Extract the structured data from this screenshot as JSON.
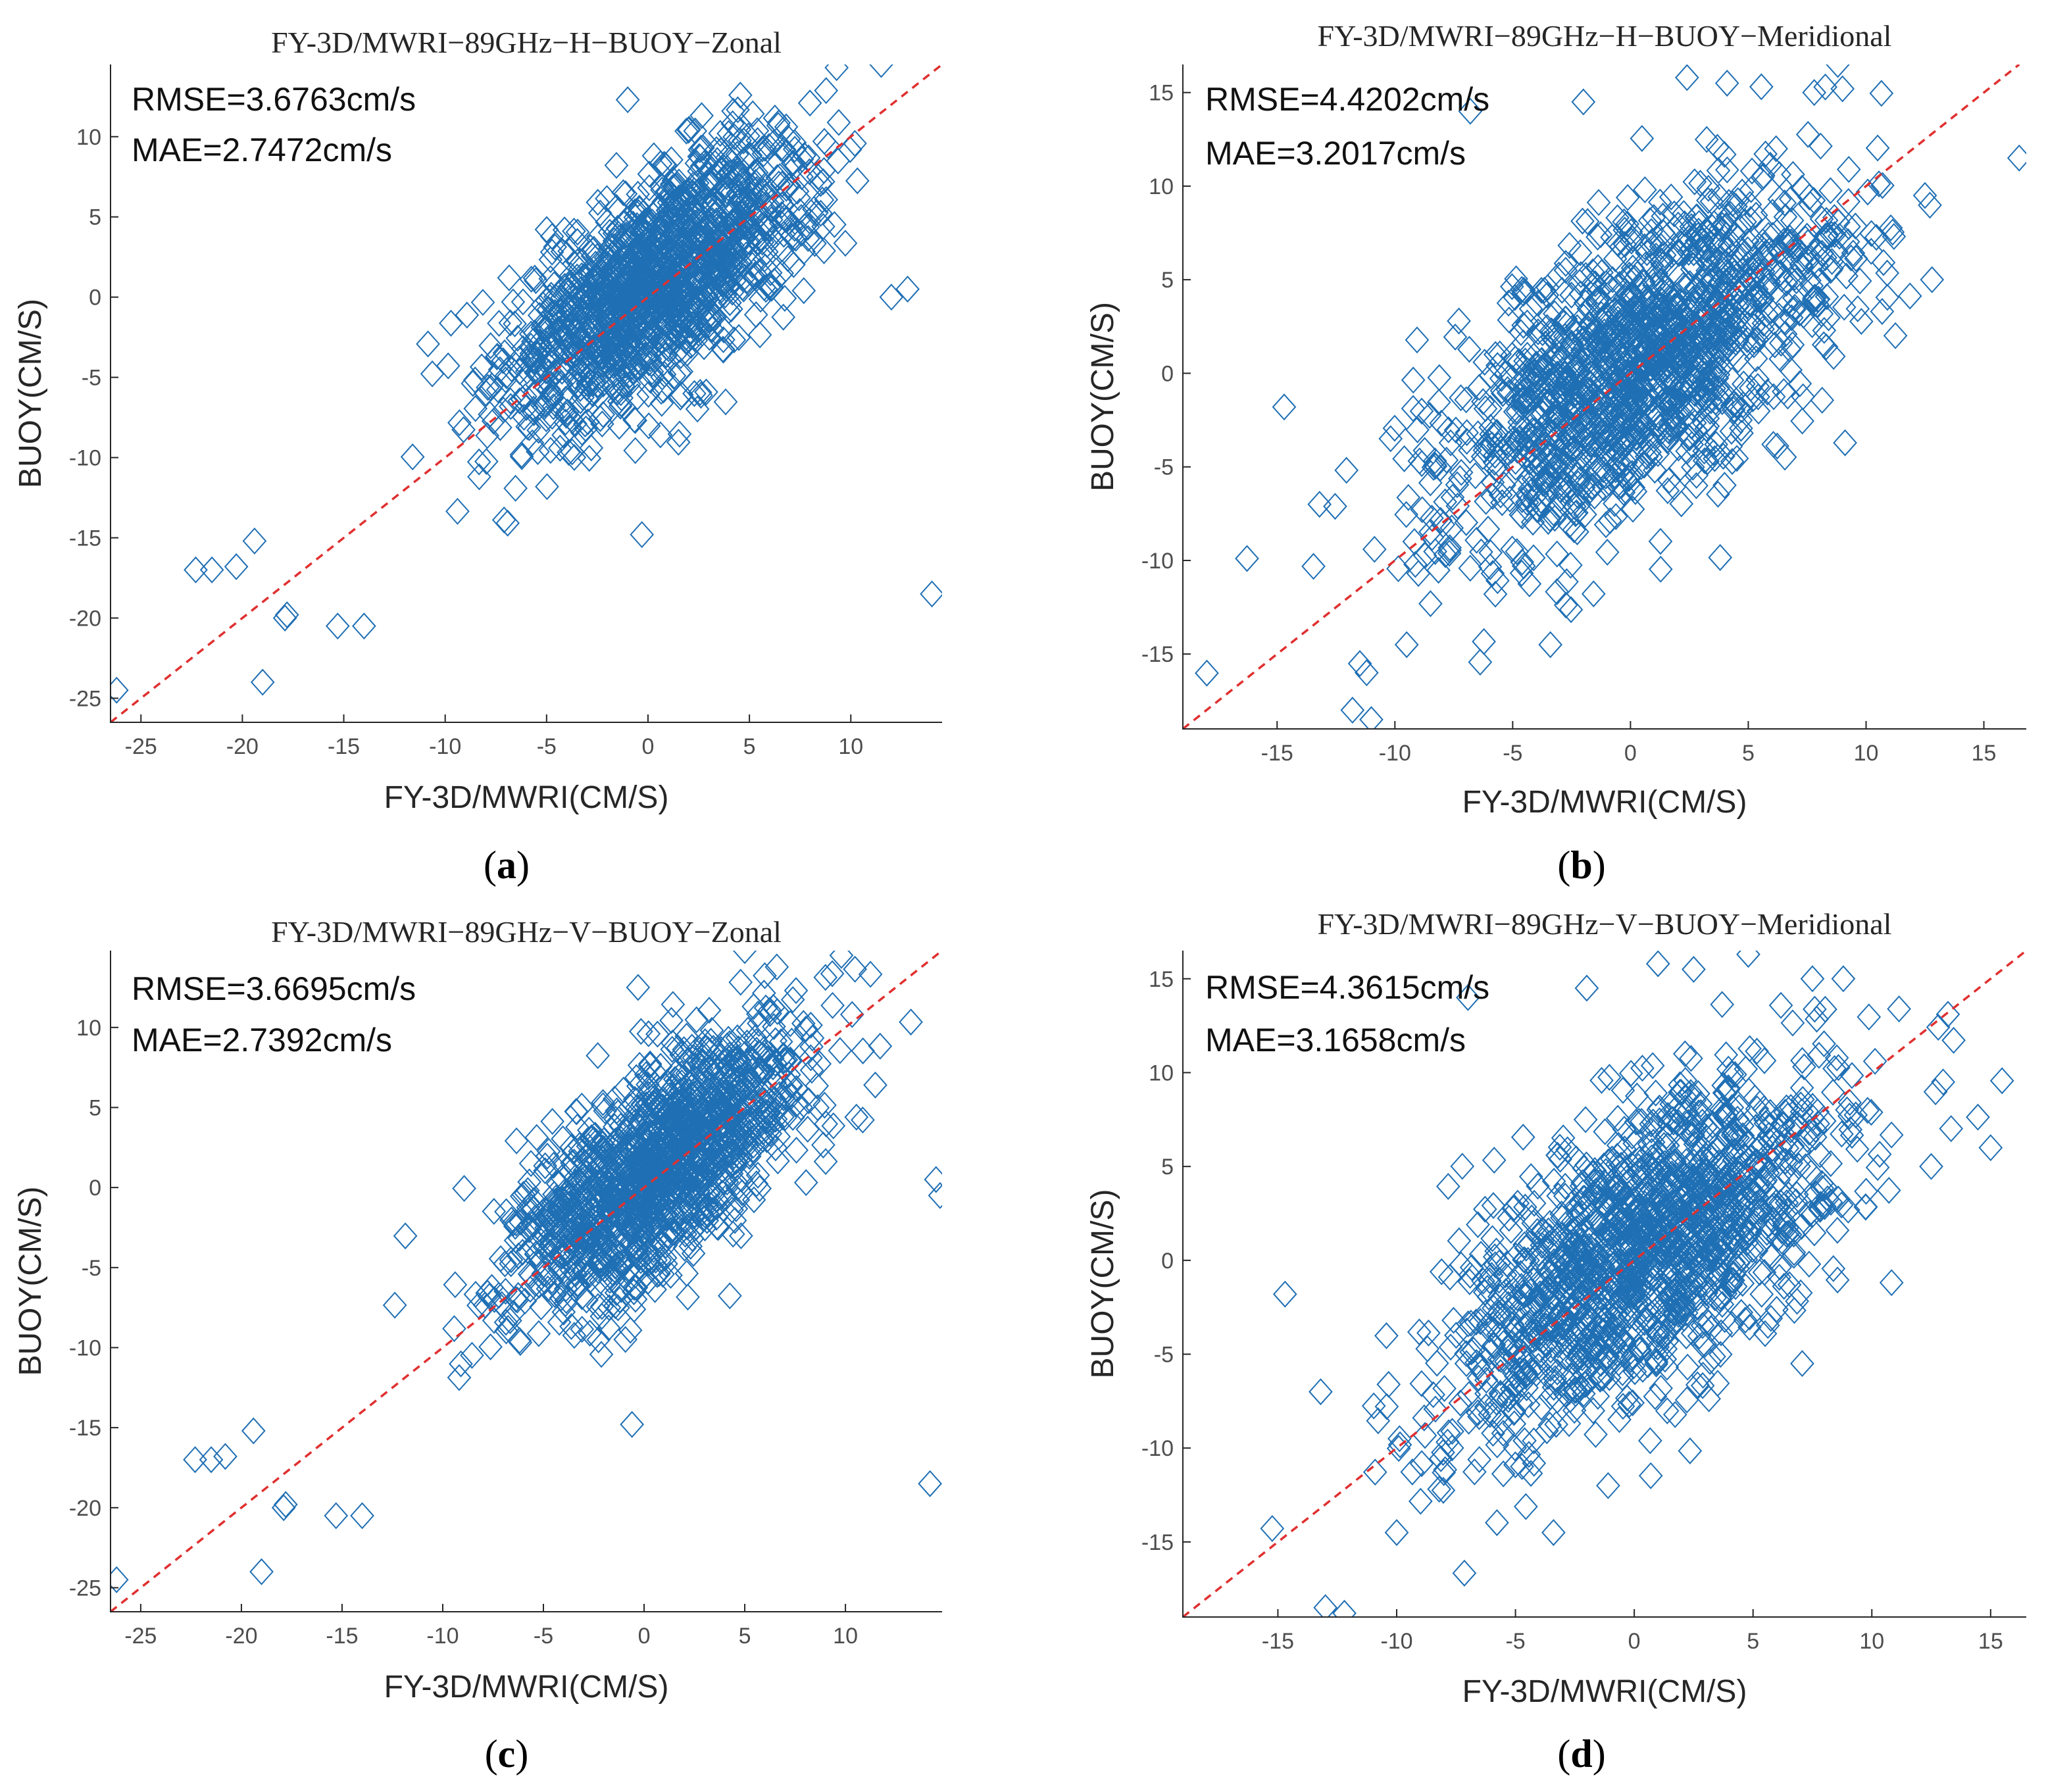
{
  "colors": {
    "marker": "#1f6fb4",
    "reference_line": "#e03030",
    "axis": "#262626"
  },
  "panels": [
    {
      "id": "a",
      "label_open": "(",
      "label_letter": "a",
      "label_close": ")",
      "title": "FY-3D/MWRI−89GHz−H−BUOY−Zonal",
      "stats": [
        "RMSE=3.6763cm/s",
        "MAE=2.7472cm/s"
      ],
      "chart_data": {
        "type": "scatter",
        "xlabel": "FY-3D/MWRI(CM/S)",
        "ylabel": "BUOY(CM/S)",
        "xlim": [
          -26.5,
          14.5
        ],
        "ylim": [
          -26.5,
          14.5
        ],
        "xticks": [
          -25,
          -20,
          -15,
          -10,
          -5,
          0,
          5,
          10
        ],
        "yticks": [
          -25,
          -20,
          -15,
          -10,
          -5,
          0,
          5,
          10
        ],
        "reference_line": "y=x",
        "marker": "diamond",
        "sample_points": 1400,
        "cluster_center": [
          0.5,
          1.0
        ],
        "sd": [
          3.8,
          4.4
        ],
        "correlation": 0.68,
        "outliers": [
          [
            -26.2,
            -24.5
          ],
          [
            -22.3,
            -17.0
          ],
          [
            -21.5,
            -17.0
          ],
          [
            -20.3,
            -16.8
          ],
          [
            -19.4,
            -15.2
          ],
          [
            -19.0,
            -24.0
          ],
          [
            -17.9,
            -20.0
          ],
          [
            -17.8,
            -19.8
          ],
          [
            -15.3,
            -20.5
          ],
          [
            -14.0,
            -20.5
          ],
          [
            14.0,
            -18.5
          ],
          [
            -0.3,
            -14.8
          ],
          [
            11.5,
            14.5
          ],
          [
            9.3,
            14.3
          ],
          [
            -1.0,
            12.3
          ],
          [
            12.8,
            0.5
          ],
          [
            12.0,
            0.0
          ]
        ]
      }
    },
    {
      "id": "b",
      "label_open": "(",
      "label_letter": "b",
      "label_close": ")",
      "title": "FY-3D/MWRI−89GHz−H−BUOY−Meridional",
      "stats": [
        "RMSE=4.4202cm/s",
        "MAE=3.2017cm/s"
      ],
      "chart_data": {
        "type": "scatter",
        "xlabel": "FY-3D/MWRI(CM/S)",
        "ylabel": "BUOY(CM/S)",
        "xlim": [
          -19,
          16.8
        ],
        "ylim": [
          -19,
          16.5
        ],
        "xticks": [
          -15,
          -10,
          -5,
          0,
          5,
          10,
          15
        ],
        "yticks": [
          -15,
          -10,
          -5,
          0,
          5,
          10,
          15
        ],
        "reference_line": "y=x",
        "marker": "diamond",
        "sample_points": 1500,
        "cluster_center": [
          0.5,
          0.5
        ],
        "sd": [
          4.2,
          4.8
        ],
        "correlation": 0.62,
        "outliers": [
          [
            16.5,
            11.5
          ],
          [
            -14.7,
            -1.8
          ],
          [
            -13.2,
            -7.0
          ],
          [
            -11.8,
            -18.0
          ],
          [
            -11.0,
            -18.5
          ],
          [
            -11.2,
            -16.0
          ],
          [
            -6.8,
            14.0
          ],
          [
            2.4,
            15.8
          ],
          [
            4.1,
            15.5
          ],
          [
            8.8,
            16.5
          ],
          [
            7.8,
            15.0
          ],
          [
            9.0,
            15.2
          ],
          [
            -2.0,
            14.5
          ],
          [
            12.5,
            9.5
          ],
          [
            12.8,
            5.0
          ],
          [
            -9.5,
            -14.5
          ],
          [
            -3.4,
            -14.5
          ]
        ]
      }
    },
    {
      "id": "c",
      "label_open": "(",
      "label_letter": "c",
      "label_close": ")",
      "title": "FY-3D/MWRI−89GHz−V−BUOY−Zonal",
      "stats": [
        "RMSE=3.6695cm/s",
        "MAE=2.7392cm/s"
      ],
      "chart_data": {
        "type": "scatter",
        "xlabel": "FY-3D/MWRI(CM/S)",
        "ylabel": "BUOY(CM/S)",
        "xlim": [
          -26.5,
          14.8
        ],
        "ylim": [
          -26.5,
          14.8
        ],
        "xticks": [
          -25,
          -20,
          -15,
          -10,
          -5,
          0,
          5,
          10
        ],
        "yticks": [
          -25,
          -20,
          -15,
          -10,
          -5,
          0,
          5,
          10
        ],
        "reference_line": "y=x",
        "marker": "diamond",
        "sample_points": 1400,
        "cluster_center": [
          0.5,
          1.0
        ],
        "sd": [
          3.8,
          4.4
        ],
        "correlation": 0.68,
        "outliers": [
          [
            -26.2,
            -24.5
          ],
          [
            -22.3,
            -17.0
          ],
          [
            -21.5,
            -17.0
          ],
          [
            -20.8,
            -16.8
          ],
          [
            -19.4,
            -15.2
          ],
          [
            -19.0,
            -24.0
          ],
          [
            -17.9,
            -20.0
          ],
          [
            -17.8,
            -19.8
          ],
          [
            -15.3,
            -20.5
          ],
          [
            -14.0,
            -20.5
          ],
          [
            14.2,
            -18.5
          ],
          [
            14.5,
            0.5
          ],
          [
            14.7,
            -0.5
          ],
          [
            -0.6,
            -14.8
          ],
          [
            9.8,
            14.5
          ],
          [
            5.0,
            14.8
          ],
          [
            -0.3,
            12.5
          ]
        ]
      }
    },
    {
      "id": "d",
      "label_open": "(",
      "label_letter": "d",
      "label_close": ")",
      "title": "FY-3D/MWRI−89GHz−V−BUOY−Meridional",
      "stats": [
        "RMSE=4.3615cm/s",
        "MAE=3.1658cm/s"
      ],
      "chart_data": {
        "type": "scatter",
        "xlabel": "FY-3D/MWRI(CM/S)",
        "ylabel": "BUOY(CM/S)",
        "xlim": [
          -19,
          16.5
        ],
        "ylim": [
          -19,
          16.5
        ],
        "xticks": [
          -15,
          -10,
          -5,
          0,
          5,
          10,
          15
        ],
        "yticks": [
          -15,
          -10,
          -5,
          0,
          5,
          10,
          15
        ],
        "reference_line": "y=x",
        "marker": "diamond",
        "sample_points": 1500,
        "cluster_center": [
          0.5,
          0.5
        ],
        "sd": [
          4.2,
          4.8
        ],
        "correlation": 0.62,
        "outliers": [
          [
            15.0,
            6.0
          ],
          [
            -14.7,
            -1.8
          ],
          [
            -13.2,
            -7.0
          ],
          [
            -12.2,
            -18.8
          ],
          [
            -13.0,
            -18.5
          ],
          [
            -7.0,
            14.0
          ],
          [
            1.0,
            15.8
          ],
          [
            2.5,
            15.5
          ],
          [
            4.8,
            16.3
          ],
          [
            8.8,
            15.0
          ],
          [
            7.5,
            15.0
          ],
          [
            -2.0,
            14.5
          ],
          [
            13.0,
            9.5
          ],
          [
            12.5,
            5.0
          ],
          [
            -10.0,
            -14.5
          ],
          [
            -3.4,
            -14.5
          ],
          [
            -1.1,
            -12.0
          ]
        ]
      }
    }
  ]
}
